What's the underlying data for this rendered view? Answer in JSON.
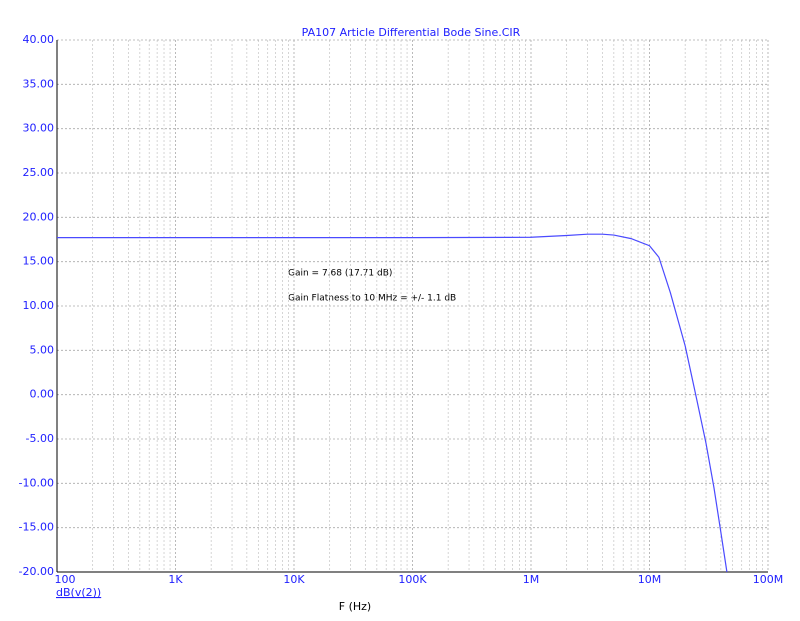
{
  "chart_data": {
    "type": "line",
    "title": "PA107 Article Differential Bode Sine.CIR",
    "xlabel": "F (Hz)",
    "xscale": "log",
    "x": [
      100,
      1000,
      10000,
      100000,
      1000000,
      2000000,
      3000000,
      4000000,
      5000000,
      7000000,
      10000000,
      12000000,
      15000000,
      20000000,
      25000000,
      30000000,
      35000000,
      40000000,
      45000000
    ],
    "series": [
      {
        "name": "dB(v(2))",
        "color": "#4a4aff",
        "values": [
          17.71,
          17.71,
          17.71,
          17.71,
          17.75,
          17.95,
          18.1,
          18.1,
          18.0,
          17.6,
          16.8,
          15.5,
          11.5,
          5.5,
          -0.5,
          -5.5,
          -10.5,
          -15.5,
          -20
        ]
      }
    ],
    "xlim": [
      100,
      100000000
    ],
    "xticks": [
      100,
      {
        "value": 1000,
        "label": "1K"
      },
      {
        "value": 10000,
        "label": "10K"
      },
      {
        "value": 100000,
        "label": "100K"
      },
      {
        "value": 1000000,
        "label": "1M"
      },
      {
        "value": 10000000,
        "label": "10M"
      },
      {
        "value": 100000000,
        "label": "100M"
      }
    ],
    "xminorticks": [
      200,
      300,
      400,
      500,
      600,
      700,
      800,
      900,
      2000,
      3000,
      4000,
      5000,
      6000,
      7000,
      8000,
      9000,
      20000,
      30000,
      40000,
      50000,
      60000,
      70000,
      80000,
      90000,
      200000,
      300000,
      400000,
      500000,
      600000,
      700000,
      800000,
      900000,
      2000000,
      3000000,
      4000000,
      5000000,
      6000000,
      7000000,
      8000000,
      9000000,
      20000000,
      30000000,
      40000000,
      50000000,
      60000000,
      70000000,
      80000000,
      90000000
    ],
    "ylim": [
      -20,
      40
    ],
    "yticks": [
      {
        "value": -20,
        "label": "-20.00"
      },
      {
        "value": -15,
        "label": "-15.00"
      },
      {
        "value": -10,
        "label": "-10.00"
      },
      {
        "value": -5,
        "label": "-5.00"
      },
      {
        "value": 0,
        "label": "0.00"
      },
      {
        "value": 5,
        "label": "5.00"
      },
      {
        "value": 10,
        "label": "10.00"
      },
      {
        "value": 15,
        "label": "15.00"
      },
      {
        "value": 20,
        "label": "20.00"
      },
      {
        "value": 25,
        "label": "25.00"
      },
      {
        "value": 30,
        "label": "30.00"
      },
      {
        "value": 35,
        "label": "35.00"
      },
      {
        "value": 40,
        "label": "40.00"
      }
    ],
    "grid": true,
    "annotations": [
      "Gain = 7.68 (17.71 dB)",
      "Gain Flatness to 10 MHz = +/- 1.1 dB"
    ]
  }
}
